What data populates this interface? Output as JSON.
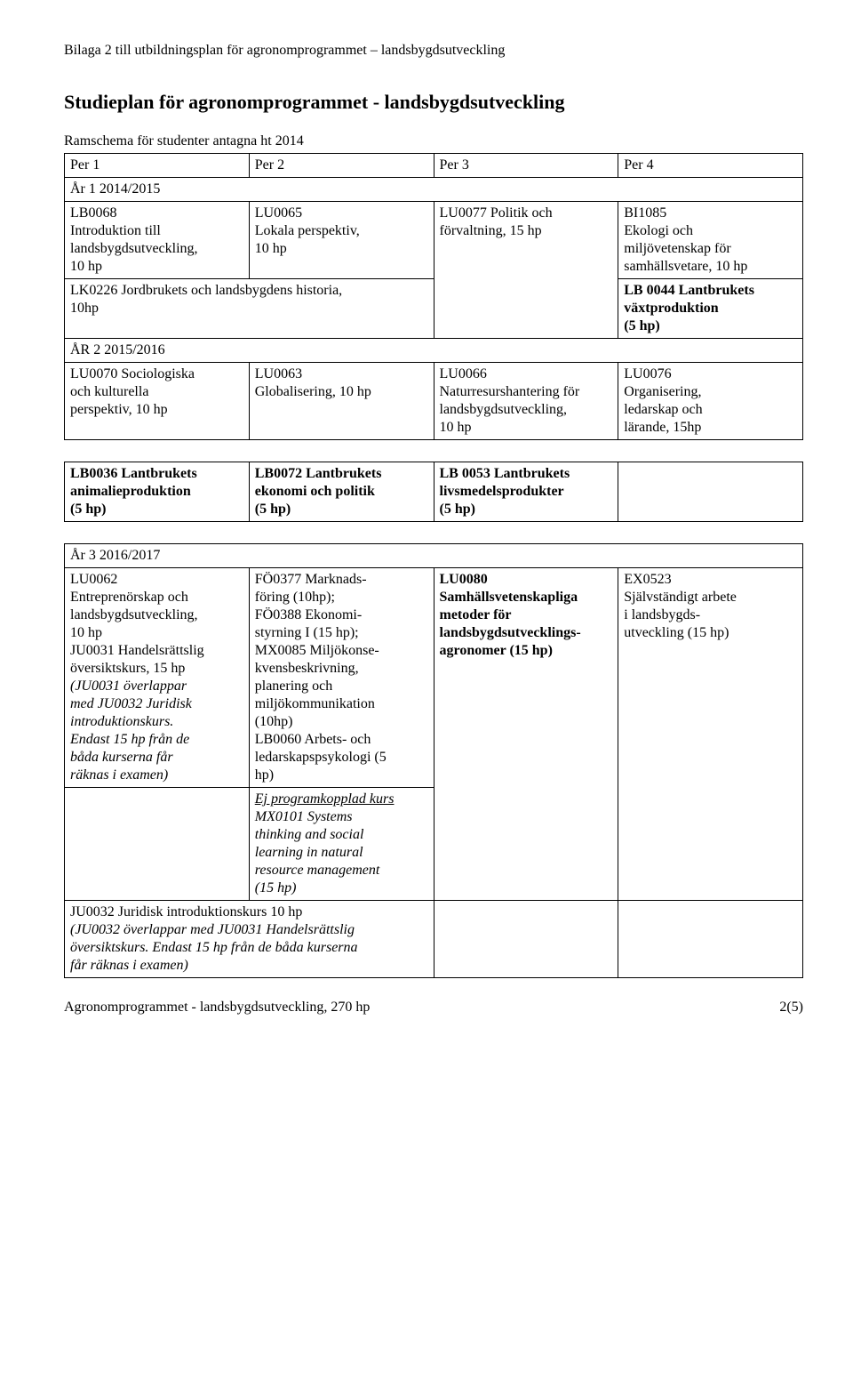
{
  "header": "Bilaga 2 till utbildningsplan för agronomprogrammet – landsbygdsutveckling",
  "title": "Studieplan för agronomprogrammet - landsbygdsutveckling",
  "subtitle": "Ramschema för studenter antagna ht 2014",
  "periods": {
    "p1": "Per 1",
    "p2": "Per 2",
    "p3": "Per 3",
    "p4": "Per  4"
  },
  "year1": {
    "label": "År 1   2014/2015",
    "c1": "LB0068\nIntroduktion till\nlandsbygdsutveckling,\n10 hp",
    "c2": "LU0065\nLokala perspektiv,\n10 hp",
    "c3": "LU0077 Politik och\nförvaltning, 15 hp",
    "c4": "BI1085\nEkologi och\nmiljövetenskap för\nsamhällsvetare, 10 hp",
    "row2c1": "LK0226 Jordbrukets och landsbygdens historia,\n10hp",
    "row2c4": "LB 0044 Lantbrukets\nväxtproduktion\n(5 hp)"
  },
  "year2": {
    "label": "ÅR 2   2015/2016",
    "c1": "LU0070 Sociologiska\noch kulturella\nperspektiv, 10 hp",
    "c2": "LU0063\nGlobalisering, 10 hp",
    "c3": "LU0066\nNaturresurshantering för\nlandsbygdsutveckling,\n10 hp",
    "c4": "LU0076\nOrganisering,\nledarskap och\nlärande, 15hp",
    "row2c1": "LB0036 Lantbrukets\nanimalieproduktion\n(5 hp)",
    "row2c2": "LB0072 Lantbrukets\nekonomi och politik\n (5 hp)",
    "row2c3": "LB 0053 Lantbrukets\nlivsmedelsprodukter\n(5 hp)"
  },
  "year3": {
    "label": "År 3   2016/2017",
    "c1a": "LU0062\nEntreprenörskap och\nlandsbygdsutveckling,\n10 hp\nJU0031 Handelsrättslig\növersiktskurs, 15 hp",
    "c1b": "(JU0031 överlappar\nmed JU0032 Juridisk\nintroduktionskurs.\nEndast 15 hp från de\nbåda kurserna får\nräknas i examen)",
    "c2": "FÖ0377 Marknads-\nföring (10hp);\nFÖ0388 Ekonomi-\nstyrning I (15 hp);\nMX0085 Miljökonse-\nkvensbeskrivning,\nplanering och\nmiljökommunikation\n(10hp)\nLB0060 Arbets- och\nledarskapspsykologi (5\nhp)",
    "c3": "LU0080\nSamhällsvetenskapliga\nmetoder för\nlandsbygdsutvecklings-\nagronomer (15 hp)",
    "c4": "EX0523\nSjälvständigt arbete\ni landsbygds-\nutveckling (15 hp)",
    "row2c2a": "Ej programkopplad kurs",
    "row2c2b": "MX0101 Systems\nthinking and social\nlearning in natural\nresource management\n(15 hp)",
    "row3a": "JU0032 Juridisk introduktionskurs 10 hp",
    "row3b": "(JU0032 överlappar med JU0031 Handelsrättslig\növersiktskurs. Endast 15 hp från de båda kurserna\nfår räknas i examen)"
  },
  "footer": {
    "left": "Agronomprogrammet - landsbygdsutveckling, 270 hp",
    "right": "2(5)"
  }
}
